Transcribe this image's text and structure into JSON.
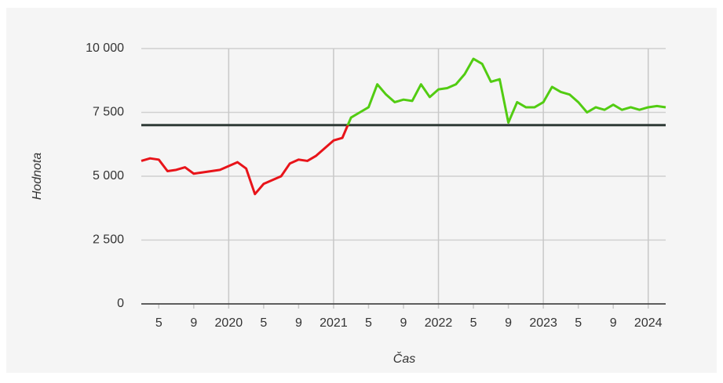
{
  "chart_data": {
    "type": "line",
    "x_label": "Čas",
    "y_label": "Hodnota",
    "x": [
      "2019-03",
      "2019-04",
      "2019-05",
      "2019-06",
      "2019-07",
      "2019-08",
      "2019-09",
      "2019-10",
      "2019-11",
      "2019-12",
      "2020-01",
      "2020-02",
      "2020-03",
      "2020-04",
      "2020-05",
      "2020-06",
      "2020-07",
      "2020-08",
      "2020-09",
      "2020-10",
      "2020-11",
      "2020-12",
      "2021-01",
      "2021-02",
      "2021-03",
      "2021-04",
      "2021-05",
      "2021-06",
      "2021-07",
      "2021-08",
      "2021-09",
      "2021-10",
      "2021-11",
      "2021-12",
      "2022-01",
      "2022-02",
      "2022-03",
      "2022-04",
      "2022-05",
      "2022-06",
      "2022-07",
      "2022-08",
      "2022-09",
      "2022-10",
      "2022-11",
      "2022-12",
      "2023-01",
      "2023-02",
      "2023-03",
      "2023-04",
      "2023-05",
      "2023-06",
      "2023-07",
      "2023-08",
      "2023-09",
      "2023-10",
      "2023-11",
      "2023-12",
      "2024-01",
      "2024-02",
      "2024-03"
    ],
    "values": [
      5600,
      5700,
      5650,
      5200,
      5250,
      5350,
      5100,
      5150,
      5200,
      5250,
      5400,
      5550,
      5300,
      4300,
      4700,
      4850,
      5000,
      5500,
      5650,
      5600,
      5800,
      6100,
      6400,
      6500,
      7300,
      7500,
      7700,
      8600,
      8200,
      7900,
      8000,
      7950,
      8600,
      8100,
      8400,
      8450,
      8600,
      9000,
      9600,
      9400,
      8700,
      8800,
      7100,
      7900,
      7700,
      7700,
      7900,
      8500,
      8300,
      8200,
      7900,
      7500,
      7700,
      7600,
      7800,
      7600,
      7700,
      7600,
      7700,
      7750,
      7700
    ],
    "below_color": "#e8141a",
    "above_color": "#52cc12",
    "threshold": {
      "value": 7000,
      "color": "#2f3b37"
    },
    "xlim": [
      "2019-03",
      "2024-03"
    ],
    "xticks": [
      {
        "value": "2019-05",
        "label": "5"
      },
      {
        "value": "2019-09",
        "label": "9"
      },
      {
        "value": "2020-01",
        "label": "2020"
      },
      {
        "value": "2020-05",
        "label": "5"
      },
      {
        "value": "2020-09",
        "label": "9"
      },
      {
        "value": "2021-01",
        "label": "2021"
      },
      {
        "value": "2021-05",
        "label": "5"
      },
      {
        "value": "2021-09",
        "label": "9"
      },
      {
        "value": "2022-01",
        "label": "2022"
      },
      {
        "value": "2022-05",
        "label": "5"
      },
      {
        "value": "2022-09",
        "label": "9"
      },
      {
        "value": "2023-01",
        "label": "2023"
      },
      {
        "value": "2023-05",
        "label": "5"
      },
      {
        "value": "2023-09",
        "label": "9"
      },
      {
        "value": "2024-01",
        "label": "2024"
      }
    ],
    "ylim": [
      0,
      10000
    ],
    "yticks": [
      0,
      {
        "value": 2500,
        "label": "2 500"
      },
      {
        "value": 5000,
        "label": "5 000"
      },
      {
        "value": 7500,
        "label": "7 500"
      },
      {
        "value": 10000,
        "label": "10 000"
      }
    ],
    "grid": true
  }
}
